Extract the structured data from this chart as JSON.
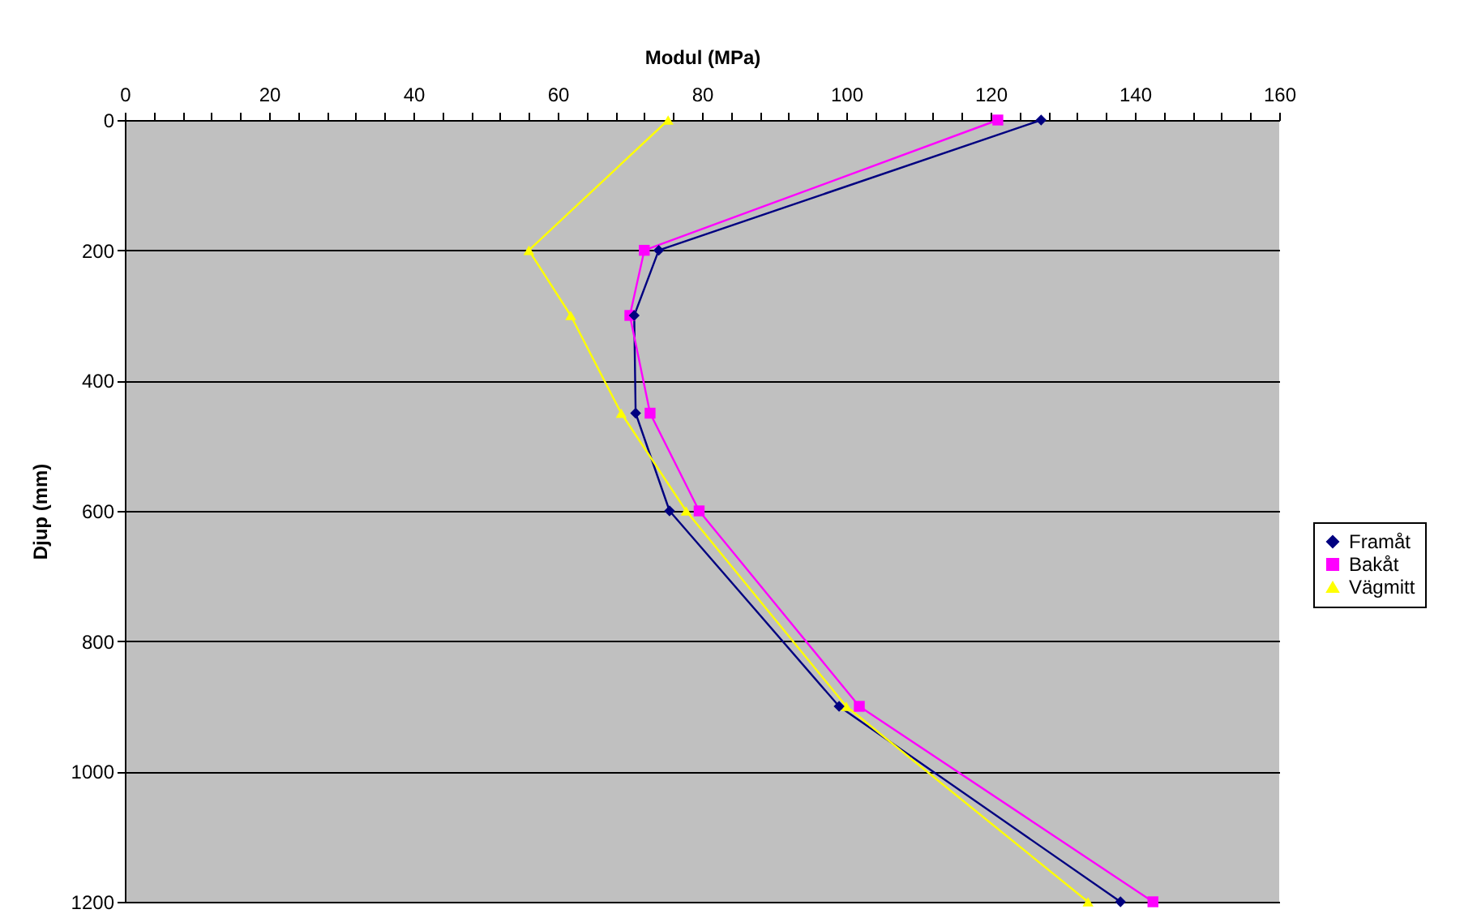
{
  "chart_data": {
    "type": "line",
    "xlabel": "Modul (MPa)",
    "ylabel": "Djup (mm)",
    "xlim": [
      0,
      160
    ],
    "ylim": [
      1200,
      0
    ],
    "xticks": [
      0,
      {
        "value": 4,
        "label": null
      },
      {
        "value": 8,
        "label": null
      },
      {
        "value": 12,
        "label": null
      },
      {
        "value": 16,
        "label": null
      },
      20,
      {
        "value": 24,
        "label": null
      },
      {
        "value": 28,
        "label": null
      },
      {
        "value": 32,
        "label": null
      },
      {
        "value": 36,
        "label": null
      },
      40,
      {
        "value": 44,
        "label": null
      },
      {
        "value": 48,
        "label": null
      },
      {
        "value": 52,
        "label": null
      },
      {
        "value": 56,
        "label": null
      },
      60,
      {
        "value": 64,
        "label": null
      },
      {
        "value": 68,
        "label": null
      },
      {
        "value": 72,
        "label": null
      },
      {
        "value": 76,
        "label": null
      },
      80,
      {
        "value": 84,
        "label": null
      },
      {
        "value": 88,
        "label": null
      },
      {
        "value": 92,
        "label": null
      },
      {
        "value": 96,
        "label": null
      },
      100,
      {
        "value": 104,
        "label": null
      },
      {
        "value": 108,
        "label": null
      },
      {
        "value": 112,
        "label": null
      },
      {
        "value": 116,
        "label": null
      },
      120,
      {
        "value": 124,
        "label": null
      },
      {
        "value": 128,
        "label": null
      },
      {
        "value": 132,
        "label": null
      },
      {
        "value": 136,
        "label": null
      },
      140,
      {
        "value": 144,
        "label": null
      },
      {
        "value": 148,
        "label": null
      },
      {
        "value": 152,
        "label": null
      },
      {
        "value": 156,
        "label": null
      },
      160
    ],
    "yticks": [
      0,
      200,
      400,
      600,
      800,
      1000,
      1200
    ],
    "grid": "y",
    "legend": "right",
    "line_style": "solid",
    "series": [
      {
        "name": "Framåt",
        "color": "#000080",
        "marker": "diamond",
        "x": [
          127,
          74,
          70.6,
          70.8,
          75.5,
          99,
          138
        ],
        "values": [
          0,
          200,
          300,
          450,
          600,
          900,
          1200
        ]
      },
      {
        "name": "Bakåt",
        "color": "#ff00ff",
        "marker": "square",
        "x": [
          121,
          72,
          70,
          72.8,
          79.6,
          101.8,
          142.5
        ],
        "values": [
          0,
          200,
          300,
          450,
          600,
          900,
          1200
        ]
      },
      {
        "name": "Vägmitt",
        "color": "#ffff00",
        "marker": "triangle",
        "x": [
          75.3,
          56,
          61.8,
          68.8,
          77.8,
          100,
          133.5
        ],
        "values": [
          0,
          200,
          300,
          450,
          600,
          900,
          1200
        ]
      }
    ]
  }
}
